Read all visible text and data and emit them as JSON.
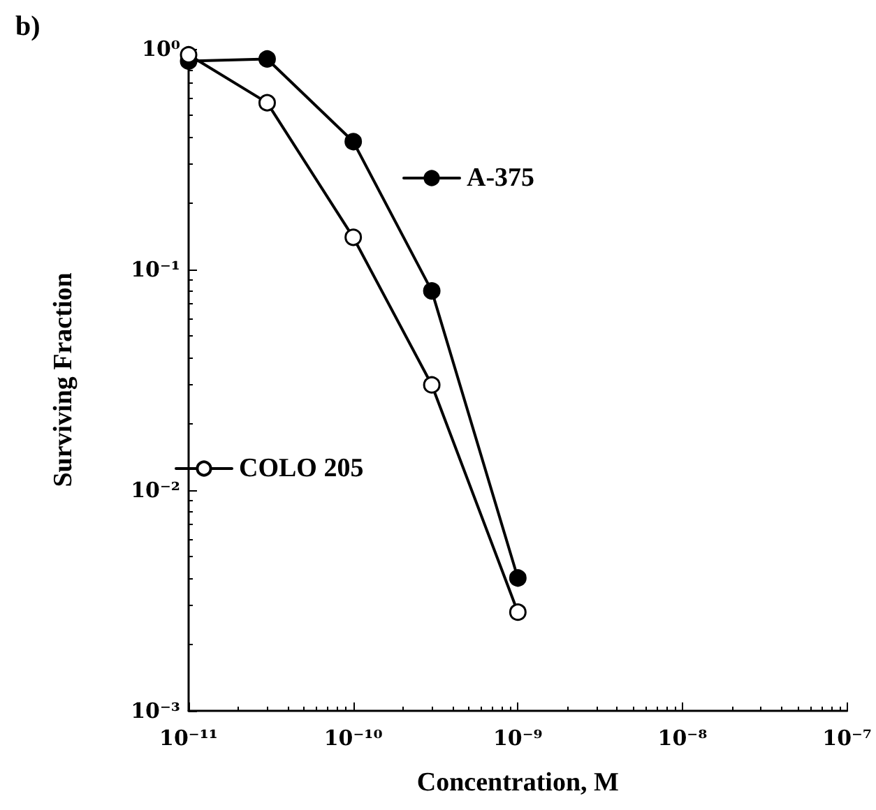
{
  "chart_data": {
    "type": "line",
    "title": "b)",
    "xlabel": "Concentration, M",
    "ylabel": "Surviving Fraction",
    "x": [
      1e-11,
      3e-11,
      1e-10,
      3e-10,
      1e-09
    ],
    "series": [
      {
        "name": "A-375",
        "color": "#000000",
        "values": [
          0.88,
          0.9,
          0.38,
          0.08,
          0.004
        ]
      },
      {
        "name": "COLO 205",
        "color": "#000000",
        "values": [
          0.94,
          0.57,
          0.14,
          0.03,
          0.0028
        ]
      }
    ],
    "log": "xy",
    "xlim": [
      1e-11,
      1e-07
    ],
    "ylim": [
      0.001,
      1
    ],
    "xticks": [
      {
        "value": 1e-11,
        "label": "10⁻¹¹"
      },
      {
        "value": 1e-10,
        "label": "10⁻¹⁰"
      },
      {
        "value": 1e-09,
        "label": "10⁻⁹"
      },
      {
        "value": 1e-08,
        "label": "10⁻⁸"
      },
      {
        "value": 1e-07,
        "label": "10⁻⁷"
      }
    ],
    "yticks": [
      {
        "value": 0.001,
        "label": "10⁻³"
      },
      {
        "value": 0.01,
        "label": "10⁻²"
      },
      {
        "value": 0.1,
        "label": "10⁻¹"
      },
      {
        "value": 1,
        "label": "10⁰"
      }
    ],
    "grid": false,
    "legend": "left",
    "marker": "circle",
    "line_style": "solid"
  }
}
